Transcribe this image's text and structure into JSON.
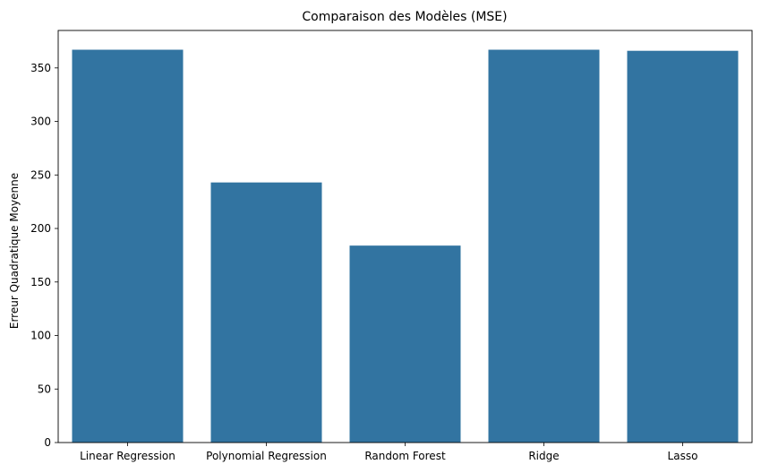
{
  "chart_data": {
    "type": "bar",
    "title": "Comparaison des Modèles (MSE)",
    "xlabel": "",
    "ylabel": "Erreur Quadratique Moyenne",
    "categories": [
      "Linear Regression",
      "Polynomial Regression",
      "Random Forest",
      "Ridge",
      "Lasso"
    ],
    "values": [
      367,
      243,
      184,
      367,
      366
    ],
    "ylim": [
      0,
      385
    ],
    "yticks": [
      0,
      50,
      100,
      150,
      200,
      250,
      300,
      350
    ],
    "grid": false,
    "bar_color": "#3274a1"
  }
}
